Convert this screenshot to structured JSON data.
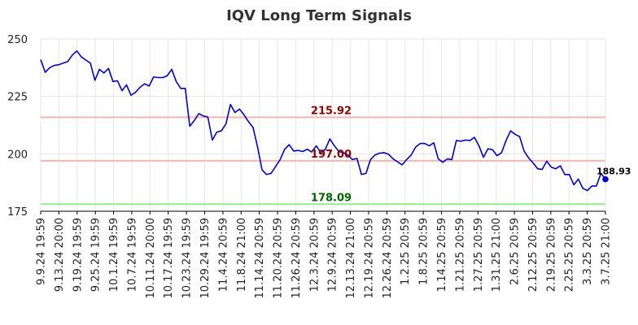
{
  "chart_data": {
    "type": "line",
    "title": "IQV Long Term Signals",
    "xlabel": "",
    "ylabel": "",
    "ylim": [
      175,
      250
    ],
    "yticks": [
      175,
      200,
      225,
      250
    ],
    "grid": true,
    "x_tick_labels": [
      "9.9.24 19:59",
      "9.13.24 20:00",
      "9.19.24 19:59",
      "9.25.24 19:59",
      "10.1.24 19:59",
      "10.7.24 19:59",
      "10.11.24 20:00",
      "10.17.24 19:59",
      "10.23.24 19:59",
      "10.29.24 19:59",
      "11.4.24 20:59",
      "11.8.24 21:00",
      "11.14.24 20:59",
      "11.20.24 20:59",
      "11.26.24 20:59",
      "12.3.24 20:59",
      "12.9.24 20:59",
      "12.13.24 21:00",
      "12.19.24 20:59",
      "12.26.24 20:59",
      "1.2.25 20:59",
      "1.8.25 20:59",
      "1.14.25 20:59",
      "1.21.25 20:59",
      "1.27.25 20:59",
      "1.31.25 21:00",
      "2.6.25 20:59",
      "2.12.25 20:59",
      "2.19.25 20:59",
      "2.25.25 20:59",
      "3.3.25 20:59",
      "3.7.25 21:00"
    ],
    "series": [
      {
        "color": "#0000cc",
        "values": [
          241.0,
          235.5,
          237.5,
          238.5,
          238.8,
          239.5,
          240.2,
          243.0,
          244.8,
          242.2,
          240.8,
          239.5,
          232.0,
          236.8,
          235.2,
          237.2,
          231.5,
          231.8,
          227.5,
          230.0,
          225.5,
          226.8,
          229.0,
          230.5,
          229.5,
          233.5,
          233.2,
          233.2,
          234.0,
          236.8,
          231.5,
          228.5,
          228.5,
          212.0,
          214.5,
          217.5,
          216.5,
          216.0,
          206.0,
          209.5,
          210.0,
          213.0,
          221.5,
          218.0,
          219.5,
          217.0,
          214.0,
          211.5,
          203.0,
          193.0,
          191.0,
          191.5,
          194.5,
          197.5,
          202.0,
          204.0,
          201.2,
          201.5,
          201.0,
          202.0,
          200.8,
          203.5,
          200.5,
          202.0,
          206.5,
          203.5,
          201.0,
          200.5,
          199.5,
          197.5,
          198.0,
          191.0,
          191.5,
          197.5,
          199.5,
          200.3,
          200.5,
          199.8,
          197.8,
          196.5,
          195.2,
          197.5,
          199.5,
          203.0,
          204.5,
          204.5,
          203.5,
          204.8,
          197.8,
          196.3,
          197.8,
          197.5,
          205.8,
          205.5,
          206.0,
          205.8,
          207.2,
          203.5,
          198.5,
          202.2,
          201.8,
          199.2,
          200.5,
          205.8,
          210.0,
          208.5,
          207.5,
          201.2,
          198.2,
          196.0,
          193.5,
          193.2,
          196.8,
          194.2,
          193.5,
          194.8,
          191.0,
          191.0,
          186.5,
          189.0,
          185.0,
          184.0,
          186.0,
          186.0,
          191.5,
          188.93
        ]
      }
    ],
    "reference_lines": [
      {
        "value": 215.92,
        "label": "215.92",
        "line_color": "#f5b5b0",
        "label_color": "#8b0000"
      },
      {
        "value": 197.0,
        "label": "197.00",
        "line_color": "#f5b5b0",
        "label_color": "#8b0000"
      },
      {
        "value": 178.09,
        "label": "178.09",
        "line_color": "#90ee90",
        "label_color": "#006400"
      }
    ],
    "last_value": {
      "value": 188.93,
      "label": "188.93",
      "color": "#0000cc"
    }
  }
}
